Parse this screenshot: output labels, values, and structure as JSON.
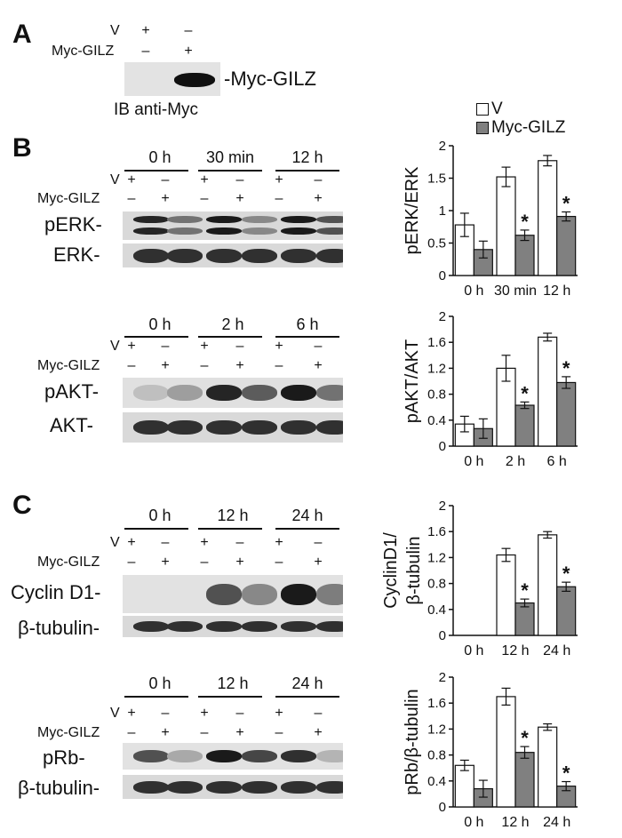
{
  "panels": {
    "A": "A",
    "B": "B",
    "C": "C"
  },
  "rows": {
    "v": "V",
    "myc": "Myc-GILZ"
  },
  "signs": {
    "plus": "+",
    "minus": "–"
  },
  "panelA": {
    "blot_label": "-Myc-GILZ",
    "ib_label": "IB anti-Myc"
  },
  "blots": {
    "perk": "pERK-",
    "erk": "ERK-",
    "pakt": "pAKT-",
    "akt": "AKT-",
    "cyclin": "Cyclin D1-",
    "tub1": "β-tubulin-",
    "prb": "pRb-",
    "tub2": "β-tubulin-"
  },
  "timepoints": {
    "erk": [
      "0 h",
      "30 min",
      "12 h"
    ],
    "akt": [
      "0 h",
      "2 h",
      "6 h"
    ],
    "cyclin": [
      "0 h",
      "12 h",
      "24 h"
    ],
    "prb": [
      "0 h",
      "12 h",
      "24 h"
    ]
  },
  "legend": {
    "v": "V",
    "myc": "Myc-GILZ",
    "v_color": "#ffffff",
    "myc_color": "#808080"
  },
  "significance_mark": "*",
  "chart_data": [
    {
      "type": "bar",
      "ylabel": "pERK/ERK",
      "categories": [
        "0 h",
        "30 min",
        "12 h"
      ],
      "ylim": [
        0,
        2
      ],
      "yticks": [
        "0",
        "0.5",
        "1",
        "1.5",
        "2"
      ],
      "ytick_values": [
        0,
        0.5,
        1,
        1.5,
        2
      ],
      "series": [
        {
          "name": "V",
          "values": [
            0.78,
            1.52,
            1.77
          ],
          "errors": [
            0.18,
            0.15,
            0.08
          ]
        },
        {
          "name": "Myc-GILZ",
          "values": [
            0.4,
            0.62,
            0.91
          ],
          "errors": [
            0.13,
            0.08,
            0.07
          ]
        }
      ],
      "significant": [
        false,
        true,
        true
      ]
    },
    {
      "type": "bar",
      "ylabel": "pAKT/AKT",
      "categories": [
        "0 h",
        "2 h",
        "6 h"
      ],
      "ylim": [
        0,
        2
      ],
      "yticks": [
        "0",
        "0.4",
        "0.8",
        "1.2",
        "1.6",
        "2"
      ],
      "ytick_values": [
        0,
        0.4,
        0.8,
        1.2,
        1.6,
        2
      ],
      "series": [
        {
          "name": "V",
          "values": [
            0.34,
            1.2,
            1.68
          ],
          "errors": [
            0.12,
            0.2,
            0.06
          ]
        },
        {
          "name": "Myc-GILZ",
          "values": [
            0.27,
            0.63,
            0.98
          ],
          "errors": [
            0.15,
            0.05,
            0.09
          ]
        }
      ],
      "significant": [
        false,
        true,
        true
      ]
    },
    {
      "type": "bar",
      "ylabel": "CyclinD1/ β-tubulin",
      "ylabel_lines": [
        "CyclinD1/",
        "β-tubulin"
      ],
      "categories": [
        "0 h",
        "12 h",
        "24 h"
      ],
      "ylim": [
        0,
        2
      ],
      "yticks": [
        "0",
        "0.4",
        "0.8",
        "1.2",
        "1.6",
        "2"
      ],
      "ytick_values": [
        0,
        0.4,
        0.8,
        1.2,
        1.6,
        2
      ],
      "series": [
        {
          "name": "V",
          "values": [
            0,
            1.24,
            1.55
          ],
          "errors": [
            0,
            0.1,
            0.05
          ]
        },
        {
          "name": "Myc-GILZ",
          "values": [
            0,
            0.5,
            0.75
          ],
          "errors": [
            0,
            0.06,
            0.07
          ]
        }
      ],
      "significant": [
        false,
        true,
        true
      ]
    },
    {
      "type": "bar",
      "ylabel": "pRb/β-tubulin",
      "categories": [
        "0 h",
        "12 h",
        "24 h"
      ],
      "ylim": [
        0,
        2
      ],
      "yticks": [
        "0",
        "0.4",
        "0.8",
        "1.2",
        "1.6",
        "2"
      ],
      "ytick_values": [
        0,
        0.4,
        0.8,
        1.2,
        1.6,
        2
      ],
      "series": [
        {
          "name": "V",
          "values": [
            0.64,
            1.7,
            1.23
          ],
          "errors": [
            0.08,
            0.13,
            0.05
          ]
        },
        {
          "name": "Myc-GILZ",
          "values": [
            0.28,
            0.84,
            0.32
          ],
          "errors": [
            0.13,
            0.09,
            0.07
          ]
        }
      ],
      "significant": [
        false,
        true,
        true
      ]
    }
  ]
}
